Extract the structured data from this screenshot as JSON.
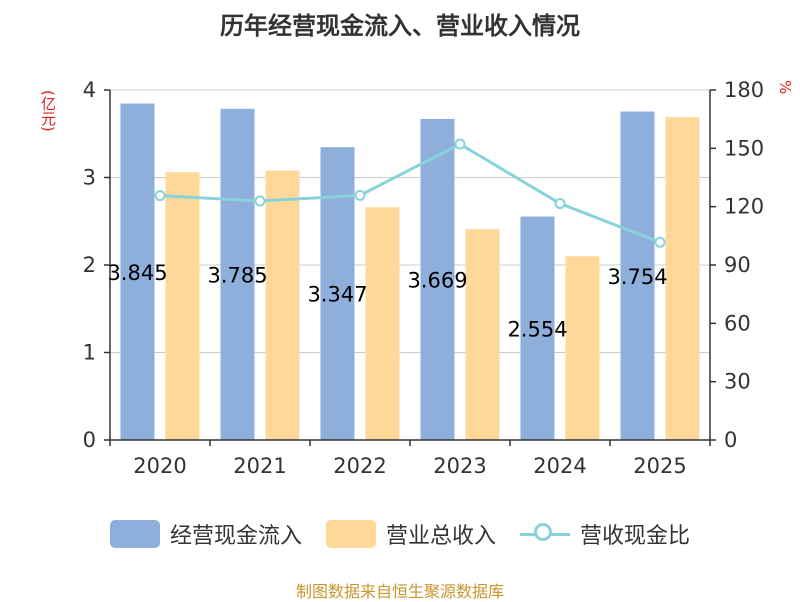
{
  "chart_data": {
    "type": "bar",
    "title": "历年经营现金流入、营业收入情况",
    "ylabel_left": "(亿元)",
    "ylabel_right": "%",
    "categories": [
      "2020",
      "2021",
      "2022",
      "2023",
      "2024",
      "2025"
    ],
    "ylim_left": [
      0,
      4
    ],
    "yticks_left": [
      0,
      1,
      2,
      3,
      4
    ],
    "ylim_right": [
      0,
      180
    ],
    "yticks_right": [
      0,
      30,
      60,
      90,
      120,
      150,
      180
    ],
    "grid": true,
    "legend_position": "bottom",
    "series": [
      {
        "name": "经营现金流入",
        "type": "bar",
        "axis": "left",
        "color": "#8eaedb",
        "values": [
          3.845,
          3.785,
          3.347,
          3.669,
          2.554,
          3.754
        ],
        "labels": [
          "3.845",
          "3.785",
          "3.347",
          "3.669",
          "2.554",
          "3.754"
        ]
      },
      {
        "name": "营业总收入",
        "type": "bar",
        "axis": "left",
        "color": "#fed898",
        "values": [
          3.06,
          3.08,
          2.66,
          2.41,
          2.1,
          3.69
        ]
      },
      {
        "name": "营收现金比",
        "type": "line",
        "axis": "right",
        "color": "#88d3db",
        "values": [
          125.7,
          122.9,
          125.8,
          152.2,
          121.6,
          101.7
        ]
      }
    ]
  },
  "source": "制图数据来自恒生聚源数据库"
}
